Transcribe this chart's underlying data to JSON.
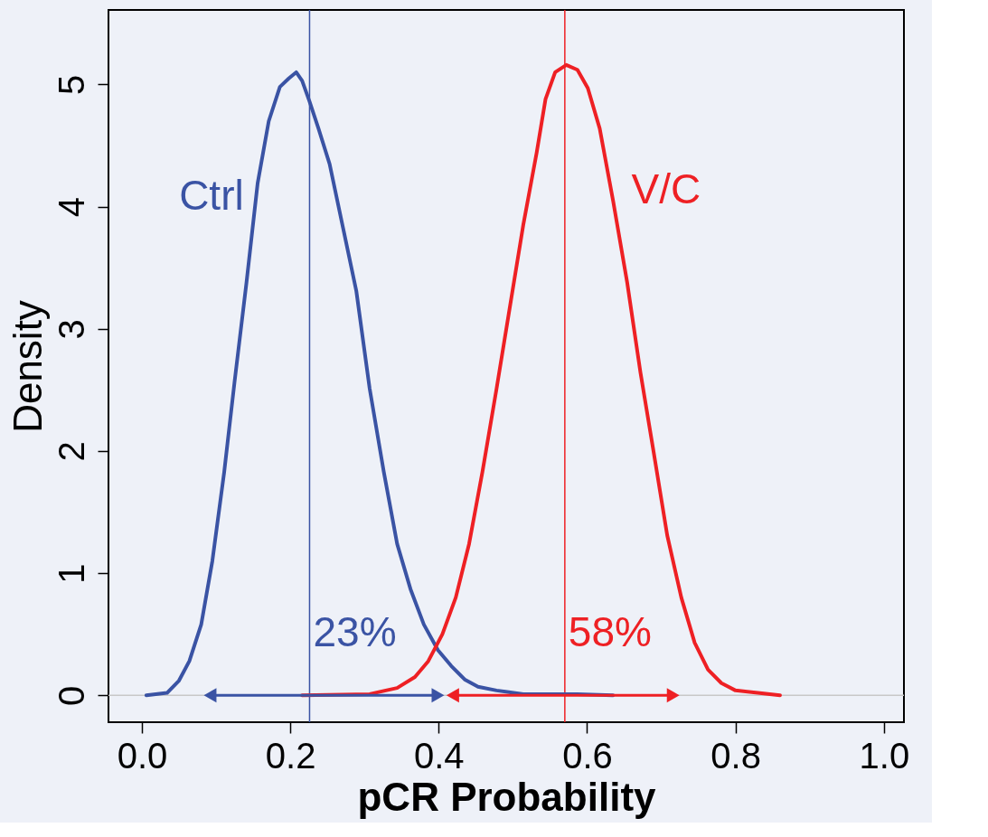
{
  "chart_data": {
    "type": "line",
    "xlabel": "pCR Probability",
    "ylabel": "Density",
    "xlim": [
      -0.045,
      1.027
    ],
    "ylim": [
      -0.22,
      5.61
    ],
    "xticks": [
      {
        "value": 0,
        "label": "0.0"
      },
      {
        "value": 0.2,
        "label": "0.2"
      },
      {
        "value": 0.4,
        "label": "0.4"
      },
      {
        "value": 0.6,
        "label": "0.6"
      },
      {
        "value": 0.8,
        "label": "0.8"
      },
      {
        "value": 1,
        "label": "1.0"
      }
    ],
    "yticks": [
      0,
      1,
      2,
      3,
      4,
      5
    ],
    "grid": false,
    "legend": false,
    "marker": "none",
    "line_style": "solid",
    "series": [
      {
        "name": "Ctrl",
        "color": "#3a53a4",
        "x": [
          0.006,
          0.034,
          0.05,
          0.064,
          0.08,
          0.095,
          0.111,
          0.125,
          0.141,
          0.156,
          0.171,
          0.186,
          0.198,
          0.208,
          0.216,
          0.226,
          0.238,
          0.253,
          0.271,
          0.289,
          0.307,
          0.326,
          0.344,
          0.362,
          0.38,
          0.399,
          0.417,
          0.435,
          0.453,
          0.478,
          0.514,
          0.587,
          0.635
        ],
        "values": [
          0,
          0.02,
          0.12,
          0.28,
          0.58,
          1.1,
          1.83,
          2.57,
          3.38,
          4.19,
          4.7,
          4.98,
          5.05,
          5.1,
          5.03,
          4.86,
          4.64,
          4.35,
          3.83,
          3.31,
          2.51,
          1.83,
          1.24,
          0.87,
          0.58,
          0.37,
          0.24,
          0.13,
          0.07,
          0.04,
          0.01,
          0.01,
          0
        ]
      },
      {
        "name": "V/C",
        "color": "#ee2024",
        "x": [
          0.216,
          0.307,
          0.344,
          0.368,
          0.386,
          0.405,
          0.423,
          0.441,
          0.459,
          0.478,
          0.496,
          0.514,
          0.532,
          0.544,
          0.557,
          0.572,
          0.587,
          0.601,
          0.617,
          0.635,
          0.654,
          0.672,
          0.69,
          0.708,
          0.727,
          0.745,
          0.763,
          0.781,
          0.8,
          0.83,
          0.86
        ],
        "values": [
          0,
          0.01,
          0.06,
          0.15,
          0.28,
          0.5,
          0.8,
          1.24,
          1.83,
          2.51,
          3.18,
          3.85,
          4.44,
          4.88,
          5.1,
          5.16,
          5.12,
          4.97,
          4.64,
          4.05,
          3.38,
          2.64,
          1.98,
          1.31,
          0.8,
          0.43,
          0.21,
          0.1,
          0.04,
          0.02,
          0
        ]
      },
      {
        "color": "#3a53a4",
        "marker": "triangle",
        "x": [
          0.092,
          0.399
        ],
        "values": [
          0,
          0
        ]
      },
      {
        "color": "#ee2024",
        "marker": "triangle",
        "x": [
          0.419,
          0.716
        ],
        "values": [
          0,
          0
        ]
      }
    ],
    "ref_lines": [
      {
        "axis": "y",
        "value": 0,
        "color": "#c8c8c8"
      },
      {
        "axis": "x",
        "value": 0.226,
        "color": "#3a53a4"
      },
      {
        "axis": "x",
        "value": 0.57,
        "color": "#ee2024"
      }
    ],
    "annotations": [
      "23%",
      "58%"
    ]
  }
}
